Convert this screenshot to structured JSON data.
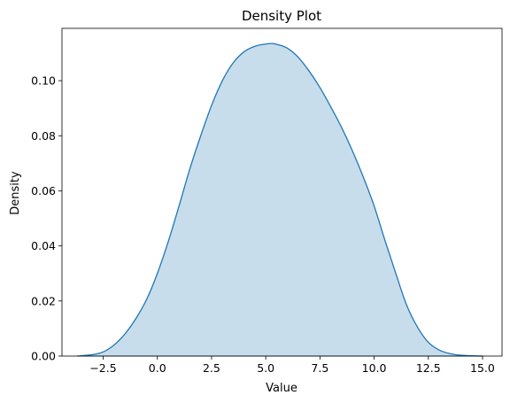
{
  "chart_data": {
    "type": "area",
    "title": "Density Plot",
    "xlabel": "Value",
    "ylabel": "Density",
    "xlim": [
      -4.4,
      15.9
    ],
    "ylim": [
      0,
      0.119
    ],
    "xticks": [
      -2.5,
      0.0,
      2.5,
      5.0,
      7.5,
      10.0,
      12.5,
      15.0
    ],
    "xtick_labels": [
      "−2.5",
      "0.0",
      "2.5",
      "5.0",
      "7.5",
      "10.0",
      "12.5",
      "15.0"
    ],
    "yticks": [
      0.0,
      0.02,
      0.04,
      0.06,
      0.08,
      0.1
    ],
    "ytick_labels": [
      "0.00",
      "0.02",
      "0.04",
      "0.06",
      "0.08",
      "0.10"
    ],
    "grid": false,
    "legend": "none",
    "line_color": "#1f77b4",
    "fill_color": "#1f77b4",
    "fill_alpha": 0.25,
    "series": [
      {
        "x": [
          -3.7,
          -3.0,
          -2.5,
          -2.0,
          -1.5,
          -1.0,
          -0.5,
          0.0,
          0.5,
          1.0,
          1.5,
          2.0,
          2.5,
          3.0,
          3.5,
          4.0,
          4.5,
          5.0,
          5.3,
          5.5,
          6.0,
          6.5,
          7.0,
          7.5,
          8.0,
          8.5,
          9.0,
          9.5,
          10.0,
          10.5,
          11.0,
          11.5,
          12.0,
          12.5,
          13.0,
          13.5,
          14.0,
          14.5,
          15.0
        ],
        "y": [
          0.0,
          0.0005,
          0.0015,
          0.004,
          0.008,
          0.0135,
          0.0205,
          0.03,
          0.0415,
          0.0545,
          0.068,
          0.08,
          0.091,
          0.1,
          0.1065,
          0.1105,
          0.1125,
          0.1133,
          0.1135,
          0.1132,
          0.1118,
          0.1085,
          0.1035,
          0.0975,
          0.0905,
          0.083,
          0.0745,
          0.065,
          0.0545,
          0.042,
          0.03,
          0.0185,
          0.0105,
          0.005,
          0.0022,
          0.0009,
          0.0003,
          0.0001,
          0.0
        ]
      }
    ]
  }
}
